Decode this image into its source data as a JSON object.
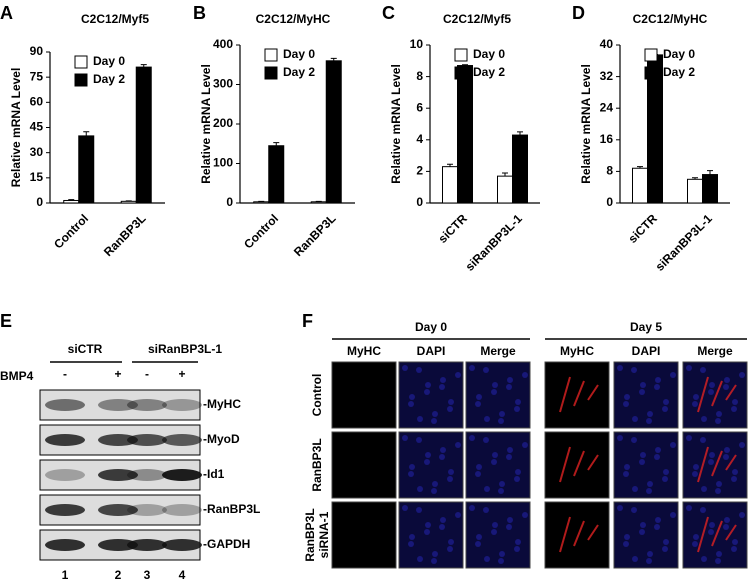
{
  "chart_data": [
    {
      "type": "bar",
      "panel": "A",
      "title": "C2C12/Myf5",
      "y_label": "Relative mRNA Level",
      "categories": [
        "Control",
        "RanBP3L"
      ],
      "series": [
        {
          "name": "Day 0",
          "color": "#ffffff",
          "values": [
            1.5,
            1
          ],
          "errors": [
            0.5,
            0.3
          ]
        },
        {
          "name": "Day 2",
          "color": "#000000",
          "values": [
            40,
            81
          ],
          "errors": [
            2.5,
            1.5
          ]
        }
      ],
      "ylim": [
        0,
        90
      ],
      "yticks": [
        0,
        15,
        30,
        45,
        60,
        75,
        90
      ]
    },
    {
      "type": "bar",
      "panel": "B",
      "title": "C2C12/MyHC",
      "y_label": "Relative mRNA Level",
      "categories": [
        "Control",
        "RanBP3L"
      ],
      "series": [
        {
          "name": "Day 0",
          "color": "#ffffff",
          "values": [
            3,
            3
          ],
          "errors": [
            1,
            1
          ]
        },
        {
          "name": "Day 2",
          "color": "#000000",
          "values": [
            145,
            360
          ],
          "errors": [
            8,
            6
          ]
        }
      ],
      "ylim": [
        0,
        400
      ],
      "yticks": [
        0,
        100,
        200,
        300,
        400
      ]
    },
    {
      "type": "bar",
      "panel": "C",
      "title": "C2C12/Myf5",
      "y_label": "Relative mRNA Level",
      "categories": [
        "siCTR",
        "siRanBP3L-1"
      ],
      "series": [
        {
          "name": "Day 0",
          "color": "#ffffff",
          "values": [
            2.3,
            1.7
          ],
          "errors": [
            0.15,
            0.2
          ]
        },
        {
          "name": "Day 2",
          "color": "#000000",
          "values": [
            8.7,
            4.3
          ],
          "errors": [
            0.05,
            0.2
          ]
        }
      ],
      "ylim": [
        0,
        10
      ],
      "yticks": [
        0,
        2,
        4,
        6,
        8,
        10
      ]
    },
    {
      "type": "bar",
      "panel": "D",
      "title": "C2C12/MyHC",
      "y_label": "Relative mRNA Level",
      "categories": [
        "siCTR",
        "siRanBP3L-1"
      ],
      "series": [
        {
          "name": "Day 0",
          "color": "#ffffff",
          "values": [
            8.8,
            6
          ],
          "errors": [
            0.4,
            0.4
          ]
        },
        {
          "name": "Day 2",
          "color": "#000000",
          "values": [
            37.5,
            7.2
          ],
          "errors": [
            0.1,
            1
          ]
        }
      ],
      "ylim": [
        0,
        40
      ],
      "yticks": [
        0,
        8,
        16,
        24,
        32,
        40
      ]
    }
  ],
  "blot": {
    "panel": "E",
    "groups": [
      "siCTR",
      "siRanBP3L-1"
    ],
    "treatment": "BMP4",
    "treatment_signs": [
      "-",
      "+",
      "-",
      "+"
    ],
    "bands": [
      "-MyHC",
      "-MyoD",
      "-Id1",
      "-RanBP3L",
      "-GAPDH"
    ],
    "lanes": [
      "1",
      "2",
      "3",
      "4"
    ]
  },
  "imaging": {
    "panel": "F",
    "days": [
      "Day 0",
      "Day 5"
    ],
    "channels": [
      "MyHC",
      "DAPI",
      "Merge"
    ],
    "rows": [
      [
        "Control"
      ],
      [
        "RanBP3L"
      ],
      [
        "RanBP3L",
        "siRNA-1"
      ]
    ]
  }
}
